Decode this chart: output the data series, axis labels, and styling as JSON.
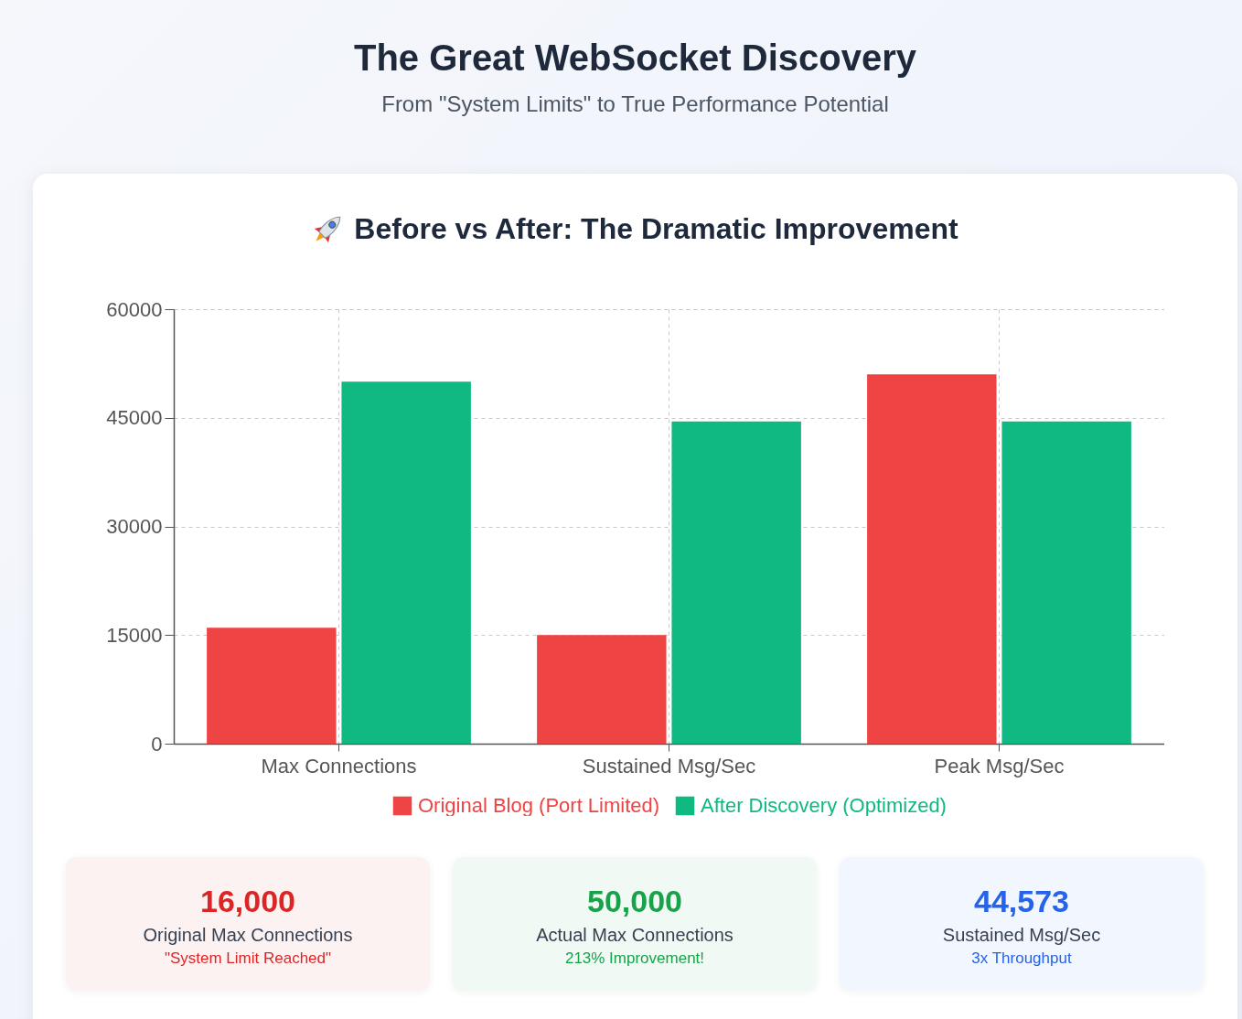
{
  "chart_data": [
    {
      "type": "other",
      "title": "The Great WebSocket Discovery",
      "subtitle": "From \"System Limits\" to True Performance Potential"
    },
    {
      "type": "bar",
      "title": "Before vs After: The Dramatic Improvement",
      "categories": [
        "Max Connections",
        "Sustained Msg/Sec",
        "Peak Msg/Sec"
      ],
      "series": [
        {
          "name": "Original Blog (Port Limited)",
          "color": "#ef4444",
          "values": [
            16000,
            15000,
            51000
          ]
        },
        {
          "name": "After Discovery (Optimized)",
          "color": "#10b981",
          "values": [
            50000,
            44500,
            44500
          ]
        }
      ],
      "ylim": [
        0,
        60000
      ],
      "yticks": [
        0,
        15000,
        30000,
        45000,
        60000
      ],
      "grid": true,
      "legend": "bottom"
    },
    {
      "type": "other",
      "title": "16,000",
      "subtitle": "Original Max Connections",
      "annotations": [
        "\"System Limit Reached\""
      ],
      "color": "#dc2626"
    },
    {
      "type": "other",
      "title": "50,000",
      "subtitle": "Actual Max Connections",
      "annotations": [
        "213% Improvement!"
      ],
      "color": "#16a34a"
    },
    {
      "type": "other",
      "title": "44,573",
      "subtitle": "Sustained Msg/Sec",
      "annotations": [
        "3x Throughput"
      ],
      "color": "#2563eb"
    }
  ]
}
